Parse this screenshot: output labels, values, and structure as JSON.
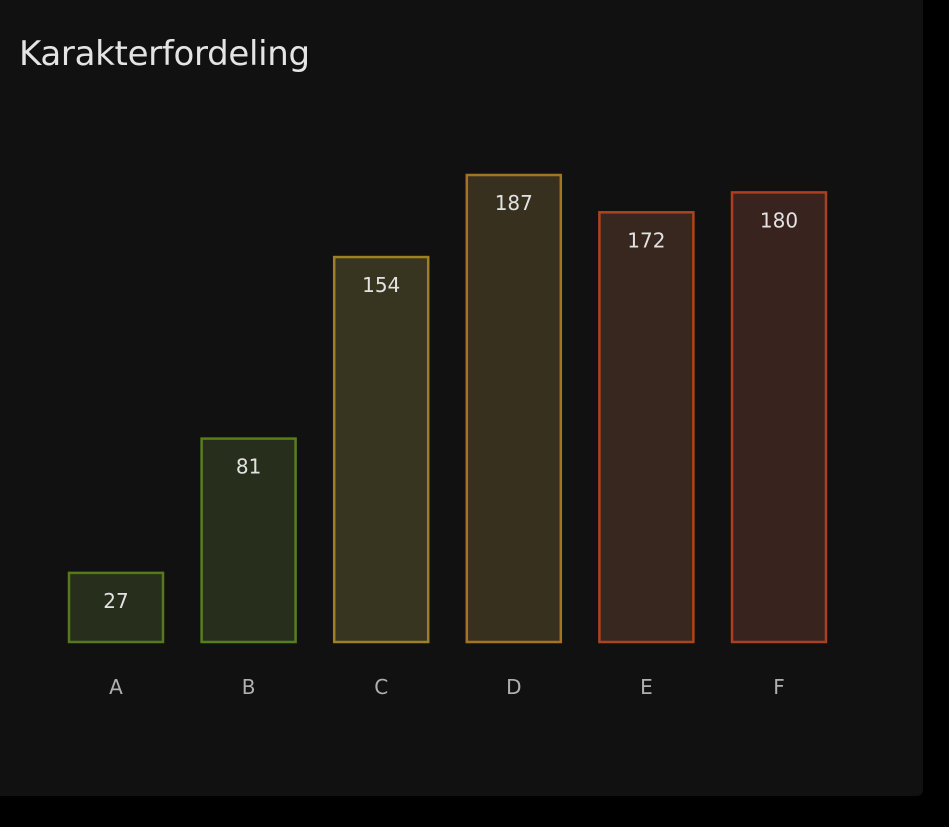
{
  "chart_data": {
    "type": "bar",
    "title": "Karakterfordeling",
    "categories": [
      "A",
      "B",
      "C",
      "D",
      "E",
      "F"
    ],
    "values": [
      27,
      81,
      154,
      187,
      172,
      180
    ],
    "ylim": [
      0,
      187
    ],
    "grid": false,
    "legend": "none",
    "data_labels": true,
    "colors": {
      "stroke": [
        "#56791b",
        "#567f1b",
        "#9c8224",
        "#a6741e",
        "#ad441b",
        "#ae3e20"
      ],
      "fill": [
        "#272e1c",
        "#272f1c",
        "#37341f",
        "#38301e",
        "#38271e",
        "#38231f"
      ]
    }
  }
}
